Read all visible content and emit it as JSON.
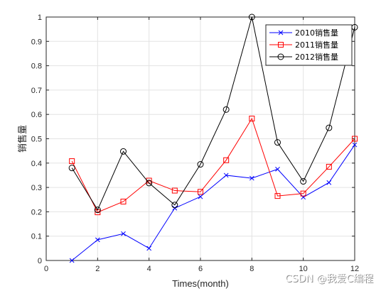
{
  "chart_data": {
    "type": "line",
    "xlabel": "Times(month)",
    "ylabel": "销售量",
    "xlim": [
      0,
      12
    ],
    "ylim": [
      0,
      1
    ],
    "xticks": [
      0,
      2,
      4,
      6,
      8,
      10,
      12
    ],
    "yticks": [
      0,
      0.1,
      0.2,
      0.3,
      0.4,
      0.5,
      0.6,
      0.7,
      0.8,
      0.9,
      1
    ],
    "xtick_labels": [
      "0",
      "2",
      "4",
      "6",
      "8",
      "10",
      "12"
    ],
    "ytick_labels": [
      "0",
      "0.1",
      "0.2",
      "0.3",
      "0.4",
      "0.5",
      "0.6",
      "0.7",
      "0.8",
      "0.9",
      "1"
    ],
    "grid": true,
    "legend_position": "top-right",
    "x": [
      1,
      2,
      3,
      4,
      5,
      6,
      7,
      8,
      9,
      10,
      11,
      12
    ],
    "series": [
      {
        "name": "2010销售量",
        "color": "#0000ff",
        "marker": "x",
        "values": [
          0,
          0.085,
          0.11,
          0.05,
          0.215,
          0.262,
          0.35,
          0.338,
          0.375,
          0.26,
          0.32,
          0.475
        ]
      },
      {
        "name": "2011销售量",
        "color": "#ff0000",
        "marker": "square",
        "values": [
          0.408,
          0.198,
          0.242,
          0.328,
          0.287,
          0.282,
          0.412,
          0.583,
          0.265,
          0.275,
          0.385,
          0.5
        ]
      },
      {
        "name": "2012销售量",
        "color": "#000000",
        "marker": "circle",
        "values": [
          0.38,
          0.208,
          0.448,
          0.318,
          0.228,
          0.395,
          0.62,
          1.0,
          0.485,
          0.325,
          0.545,
          0.958
        ]
      }
    ]
  },
  "watermark": "CSDN @我爱C编程"
}
